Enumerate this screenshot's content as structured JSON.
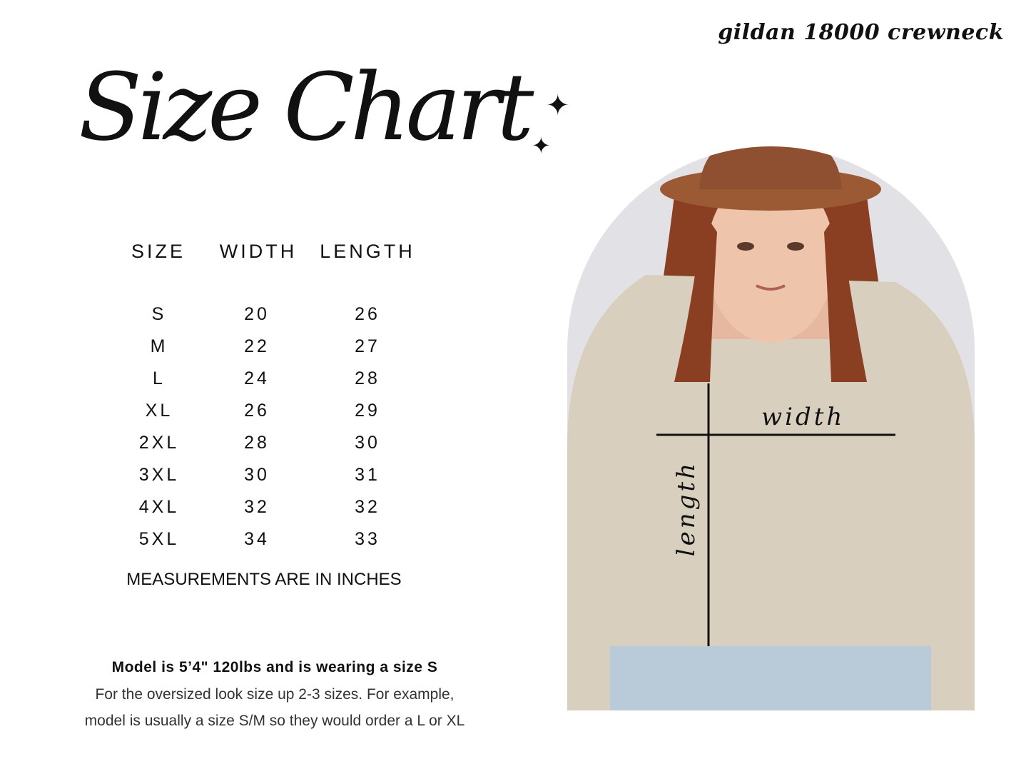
{
  "title": "Size Chart",
  "brand": "gildan 18000 crewneck",
  "table": {
    "headers": [
      "SIZE",
      "WIDTH",
      "LENGTH"
    ],
    "rows": [
      [
        "S",
        "20",
        "26"
      ],
      [
        "M",
        "22",
        "27"
      ],
      [
        "L",
        "24",
        "28"
      ],
      [
        "XL",
        "26",
        "29"
      ],
      [
        "2XL",
        "28",
        "30"
      ],
      [
        "3XL",
        "30",
        "31"
      ],
      [
        "4XL",
        "32",
        "32"
      ],
      [
        "5XL",
        "34",
        "33"
      ]
    ]
  },
  "units_note": "MEASUREMENTS ARE IN INCHES",
  "model_info": "Model is 5’4\" 120lbs and is wearing a size S",
  "advice_line1": "For the oversized look size up 2-3 sizes. For example,",
  "advice_line2": "model is usually a size S/M so they would order a L or XL",
  "photo": {
    "width_label": "width",
    "length_label": "length"
  }
}
